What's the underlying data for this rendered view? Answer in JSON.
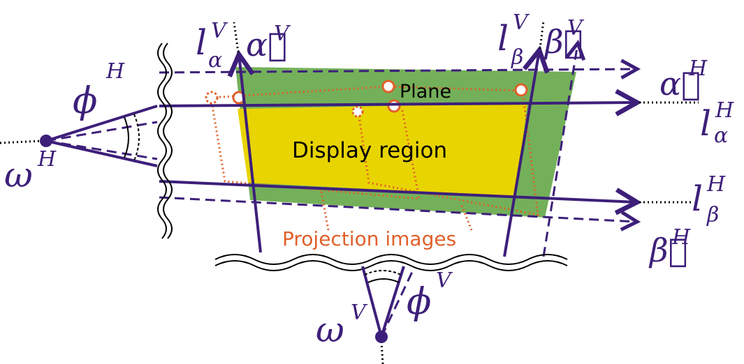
{
  "labels": {
    "plane": "Plane",
    "display_region": "Display region",
    "projection_images": "Projection images"
  },
  "symbols": {
    "l_alpha_V": {
      "base": "l",
      "sup": "V",
      "sub": "α"
    },
    "alpha_vec_V": {
      "base": "α⃗",
      "sup": "V"
    },
    "l_beta_V": {
      "base": "l",
      "sup": "V",
      "sub": "β"
    },
    "beta_vec_V": {
      "base": "β⃗",
      "sup": "V"
    },
    "alpha_vec_H": {
      "base": "α⃗",
      "sup": "H"
    },
    "l_alpha_H": {
      "base": "l",
      "sup": "H",
      "sub": "α"
    },
    "l_beta_H": {
      "base": "l",
      "sup": "H",
      "sub": "β"
    },
    "beta_vec_H": {
      "base": "β⃗",
      "sup": "H"
    },
    "phi_H": {
      "base": "ϕ",
      "sup": "H"
    },
    "omega_H": {
      "base": "ω",
      "sup": "H"
    },
    "phi_V": {
      "base": "ϕ",
      "sup": "V"
    },
    "omega_V": {
      "base": "ω",
      "sup": "V"
    }
  },
  "colors": {
    "line": "#3d1f7a",
    "plane_fill": "#74b05a",
    "display_fill": "#e8d400",
    "projection": "#e0602a",
    "text": "#000000"
  }
}
